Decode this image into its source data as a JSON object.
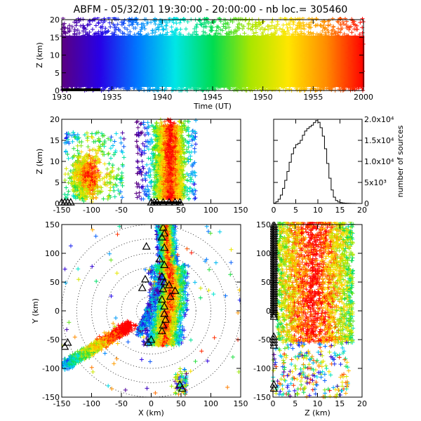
{
  "figure": {
    "title": "ABFM - 05/32/01 19:30:00 - 20:00:00 - nb loc.= 305460"
  },
  "chart_data": [
    {
      "id": "time_height",
      "type": "scatter",
      "xlabel": "Time (UT)",
      "ylabel": "Z (km)",
      "xlim": [
        1930,
        2000
      ],
      "ylim": [
        0,
        20
      ],
      "xticks": [
        "1930",
        "1935",
        "1940",
        "1945",
        "1950",
        "1955",
        "2000"
      ],
      "yticks": [
        "0",
        "5",
        "10",
        "15",
        "20"
      ],
      "colormap": "rainbow (purple→blue→cyan→green→yellow→red with time)",
      "note": "dense band of sources from 0 to 20 km across entire period"
    },
    {
      "id": "x_height",
      "type": "scatter",
      "xlabel": "",
      "ylabel": "Z (km)",
      "xlim": [
        -150,
        150
      ],
      "ylim": [
        0,
        20
      ],
      "xticks": [
        "-150",
        "-100",
        "-50",
        "0",
        "50",
        "100",
        "150"
      ],
      "yticks": [
        "0",
        "5",
        "10",
        "15",
        "20"
      ],
      "clusters": [
        {
          "name": "west",
          "x": [
            -145,
            -45
          ],
          "z": [
            1,
            17
          ]
        },
        {
          "name": "east",
          "x": [
            -20,
            75
          ],
          "z": [
            1,
            19
          ]
        }
      ]
    },
    {
      "id": "height_histogram",
      "type": "line",
      "xlabel": "",
      "ylabel": "number of sources",
      "xlim": [
        0,
        20
      ],
      "ylim": [
        0,
        20000
      ],
      "xticks": [
        "0",
        "5",
        "10",
        "15",
        "20"
      ],
      "yticks": [
        "0",
        "5x10³",
        "1.0x10⁴",
        "1.5x10⁴",
        "2.0x10⁴"
      ],
      "x": [
        0,
        0.5,
        1,
        1.5,
        2,
        2.5,
        3,
        3.5,
        4,
        4.5,
        5,
        5.5,
        6,
        6.5,
        7,
        7.5,
        8,
        8.5,
        9,
        9.5,
        10,
        10.5,
        11,
        11.5,
        12,
        12.5,
        13,
        13.5,
        14,
        14.5,
        15,
        15.5,
        16,
        16.5,
        17,
        17.5,
        18,
        18.5,
        19,
        19.5
      ],
      "values": [
        100,
        400,
        1000,
        2000,
        3600,
        5500,
        7600,
        9800,
        11800,
        13200,
        14000,
        14300,
        15000,
        16200,
        17200,
        17800,
        18200,
        18600,
        19200,
        19700,
        19300,
        18000,
        16000,
        13000,
        9500,
        6000,
        3200,
        1500,
        700,
        350,
        200,
        120,
        80,
        60,
        40,
        30,
        20,
        10,
        5,
        0
      ]
    },
    {
      "id": "plan_view",
      "type": "scatter",
      "xlabel": "X (km)",
      "ylabel": "Y (km)",
      "xlim": [
        -150,
        150
      ],
      "ylim": [
        -150,
        150
      ],
      "xticks": [
        "-150",
        "-100",
        "-50",
        "0",
        "50",
        "100",
        "150"
      ],
      "yticks": [
        "-150",
        "-100",
        "-50",
        "0",
        "50",
        "100",
        "150"
      ],
      "range_rings_km": [
        25,
        50,
        75,
        100,
        125,
        150
      ],
      "stations": [
        [
          20,
          155
        ],
        [
          20,
          145
        ],
        [
          22,
          135
        ],
        [
          18,
          128
        ],
        [
          -8,
          112
        ],
        [
          22,
          110
        ],
        [
          14,
          90
        ],
        [
          22,
          80
        ],
        [
          18,
          60
        ],
        [
          -10,
          55
        ],
        [
          22,
          50
        ],
        [
          30,
          45
        ],
        [
          -15,
          40
        ],
        [
          20,
          38
        ],
        [
          40,
          35
        ],
        [
          32,
          25
        ],
        [
          18,
          20
        ],
        [
          22,
          8
        ],
        [
          22,
          -5
        ],
        [
          24,
          -15
        ],
        [
          20,
          -25
        ],
        [
          18,
          -35
        ],
        [
          0,
          -50
        ],
        [
          -5,
          -55
        ],
        [
          48,
          -128
        ],
        [
          52,
          -135
        ],
        [
          -140,
          -55
        ],
        [
          -145,
          -62
        ]
      ]
    },
    {
      "id": "height_y",
      "type": "scatter",
      "xlabel": "Z (km)",
      "ylabel": "",
      "xlim": [
        0,
        20
      ],
      "ylim": [
        -150,
        150
      ],
      "xticks": [
        "0",
        "5",
        "10",
        "15",
        "20"
      ],
      "yticks": [
        "-150",
        "-100",
        "-50",
        "0",
        "50",
        "100",
        "150"
      ]
    }
  ]
}
